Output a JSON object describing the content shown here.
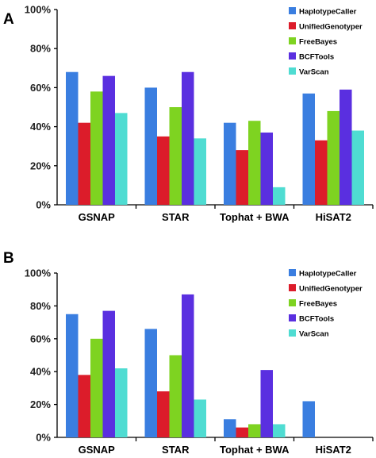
{
  "colors": {
    "HaplotypeCaller": "#3a7ee0",
    "UnifiedGenotyper": "#dc1c2a",
    "FreeBayes": "#7ed321",
    "BCFTools": "#5a2fe0",
    "VarScan": "#4fdcd2"
  },
  "chart_data": [
    {
      "panel_label": "A",
      "type": "bar",
      "categories": [
        "GSNAP",
        "STAR",
        "Tophat + BWA",
        "HiSAT2"
      ],
      "y_ticks": [
        "0%",
        "20%",
        "40%",
        "60%",
        "80%",
        "100%"
      ],
      "ylim": [
        0,
        100
      ],
      "grid": false,
      "legend_position": "top-right",
      "series": [
        {
          "name": "HaplotypeCaller",
          "values": [
            68,
            60,
            42,
            57
          ]
        },
        {
          "name": "UnifiedGenotyper",
          "values": [
            42,
            35,
            28,
            33
          ]
        },
        {
          "name": "FreeBayes",
          "values": [
            58,
            50,
            43,
            48
          ]
        },
        {
          "name": "BCFTools",
          "values": [
            66,
            68,
            37,
            59
          ]
        },
        {
          "name": "VarScan",
          "values": [
            47,
            34,
            9,
            38
          ]
        }
      ]
    },
    {
      "panel_label": "B",
      "type": "bar",
      "categories": [
        "GSNAP",
        "STAR",
        "Tophat + BWA",
        "HiSAT2"
      ],
      "y_ticks": [
        "0%",
        "20%",
        "40%",
        "60%",
        "80%",
        "100%"
      ],
      "ylim": [
        0,
        100
      ],
      "grid": false,
      "legend_position": "top-right",
      "series": [
        {
          "name": "HaplotypeCaller",
          "values": [
            75,
            66,
            11,
            22
          ]
        },
        {
          "name": "UnifiedGenotyper",
          "values": [
            38,
            28,
            6,
            0
          ]
        },
        {
          "name": "FreeBayes",
          "values": [
            60,
            50,
            8,
            0
          ]
        },
        {
          "name": "BCFTools",
          "values": [
            77,
            87,
            41,
            0
          ]
        },
        {
          "name": "VarScan",
          "values": [
            42,
            23,
            8,
            0
          ]
        }
      ]
    }
  ]
}
